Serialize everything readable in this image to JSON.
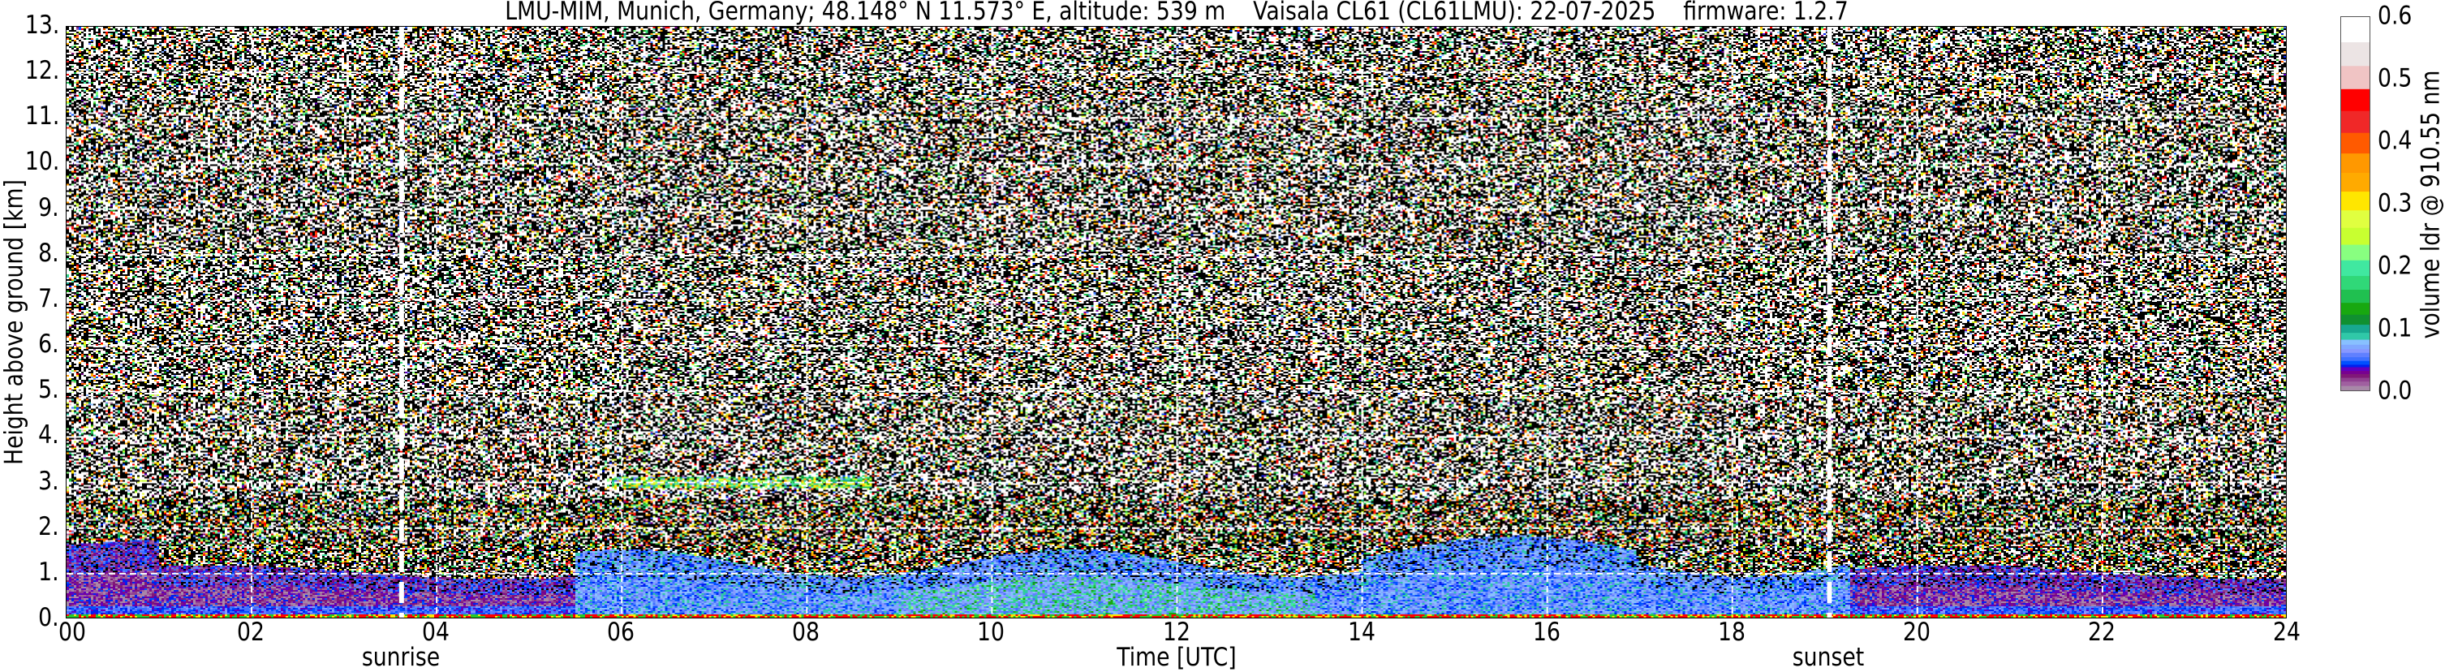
{
  "chart_data": {
    "type": "heatmap",
    "title": "LMU-MIM, Munich, Germany; 48.148° N 11.573° E, altitude: 539 m    Vaisala CL61 (CL61LMU): 22-07-2025    firmware: 1.2.7",
    "xlabel": "Time [UTC]",
    "ylabel": "Height above ground [km]",
    "xlim": [
      0,
      24
    ],
    "ylim": [
      0,
      13
    ],
    "grid": true,
    "x_ticks": [
      0,
      2,
      4,
      6,
      8,
      10,
      12,
      14,
      16,
      18,
      20,
      22,
      24
    ],
    "x_tick_labels": [
      "00",
      "02",
      "04",
      "06",
      "08",
      "10",
      "12",
      "14",
      "16",
      "18",
      "20",
      "22",
      "24"
    ],
    "y_ticks": [
      0,
      1,
      2,
      3,
      4,
      5,
      6,
      7,
      8,
      9,
      10,
      11,
      12,
      13
    ],
    "y_tick_labels": [
      "0.",
      "1.",
      "2.",
      "3.",
      "4.",
      "5.",
      "6.",
      "7.",
      "8.",
      "9.",
      "10.",
      "11.",
      "12.",
      "13."
    ],
    "events": [
      {
        "label": "sunrise",
        "time": 3.62
      },
      {
        "label": "sunset",
        "time": 19.05
      }
    ],
    "colorbar": {
      "label": "volume ldr @ 910.55 nm",
      "range": [
        0,
        0.6
      ],
      "ticks": [
        "0.0",
        "0.1",
        "0.2",
        "0.3",
        "0.4",
        "0.5",
        "0.6"
      ],
      "levels": [
        {
          "from": 0.0,
          "color": "#a888a8"
        },
        {
          "from": 0.009,
          "color": "#a060a0"
        },
        {
          "from": 0.016,
          "color": "#904090"
        },
        {
          "from": 0.022,
          "color": "#801878"
        },
        {
          "from": 0.028,
          "color": "#780090"
        },
        {
          "from": 0.033,
          "color": "#6000c0"
        },
        {
          "from": 0.039,
          "color": "#0020f0"
        },
        {
          "from": 0.043,
          "color": "#0050ff"
        },
        {
          "from": 0.049,
          "color": "#4070ff"
        },
        {
          "from": 0.055,
          "color": "#6080ff"
        },
        {
          "from": 0.062,
          "color": "#8898ff"
        },
        {
          "from": 0.068,
          "color": "#80a8ff"
        },
        {
          "from": 0.075,
          "color": "#88c0ff"
        },
        {
          "from": 0.083,
          "color": "#30c8a8"
        },
        {
          "from": 0.094,
          "color": "#18a890"
        },
        {
          "from": 0.107,
          "color": "#109030"
        },
        {
          "from": 0.123,
          "color": "#18a810"
        },
        {
          "from": 0.142,
          "color": "#20c050"
        },
        {
          "from": 0.163,
          "color": "#30d878"
        },
        {
          "from": 0.185,
          "color": "#40e8a0"
        },
        {
          "from": 0.21,
          "color": "#88ff80"
        },
        {
          "from": 0.235,
          "color": "#c8ff30"
        },
        {
          "from": 0.262,
          "color": "#e0ff40"
        },
        {
          "from": 0.29,
          "color": "#ffe600"
        },
        {
          "from": 0.32,
          "color": "#ffaa00"
        },
        {
          "from": 0.35,
          "color": "#ff9800"
        },
        {
          "from": 0.381,
          "color": "#ff5a00"
        },
        {
          "from": 0.414,
          "color": "#f02828"
        },
        {
          "from": 0.449,
          "color": "#ff0000"
        },
        {
          "from": 0.484,
          "color": "#f0c4c4"
        },
        {
          "from": 0.521,
          "color": "#ece4e4"
        },
        {
          "from": 0.559,
          "color": "#ffffff"
        }
      ]
    }
  }
}
